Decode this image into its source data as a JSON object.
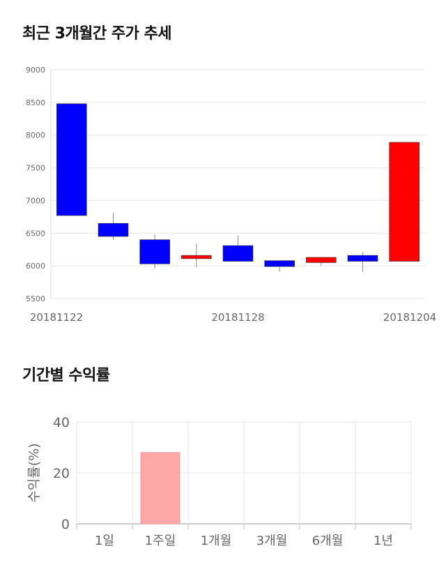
{
  "sections": {
    "price_title": "최근 3개월간 주가 추세",
    "return_title": "기간별 수익률"
  },
  "chart_data": [
    {
      "type": "candlestick",
      "title": "최근 3개월간 주가 추세",
      "ylim": [
        5500,
        9000
      ],
      "y_ticks": [
        5500,
        6000,
        6500,
        7000,
        7500,
        8000,
        8500,
        9000
      ],
      "x_tick_labels": [
        "20181122",
        "20181128",
        "20181204"
      ],
      "grid": true,
      "up_color": "#ff0000",
      "down_color": "#0000ff",
      "candles": [
        {
          "open": 8480,
          "close": 6770,
          "high": 8480,
          "low": 6770
        },
        {
          "open": 6650,
          "close": 6450,
          "high": 6810,
          "low": 6400
        },
        {
          "open": 6400,
          "close": 6030,
          "high": 6480,
          "low": 5960
        },
        {
          "open": 6110,
          "close": 6160,
          "high": 6340,
          "low": 5980
        },
        {
          "open": 6310,
          "close": 6070,
          "high": 6460,
          "low": 6070
        },
        {
          "open": 6080,
          "close": 5990,
          "high": 6080,
          "low": 5910
        },
        {
          "open": 6050,
          "close": 6130,
          "high": 6130,
          "low": 6000
        },
        {
          "open": 6160,
          "close": 6070,
          "high": 6210,
          "low": 5910
        },
        {
          "open": 6070,
          "close": 7890,
          "high": 7890,
          "low": 6070
        }
      ]
    },
    {
      "type": "bar",
      "title": "기간별 수익률",
      "categories": [
        "1일",
        "1주일",
        "1개월",
        "3개월",
        "6개월",
        "1년"
      ],
      "values": [
        0,
        28,
        0,
        0,
        0,
        0
      ],
      "ylabel": "수익률(%)",
      "ylim": [
        0,
        40
      ],
      "y_ticks": [
        0,
        20,
        40
      ],
      "grid": true,
      "bar_color": "#ffa8a8"
    }
  ]
}
